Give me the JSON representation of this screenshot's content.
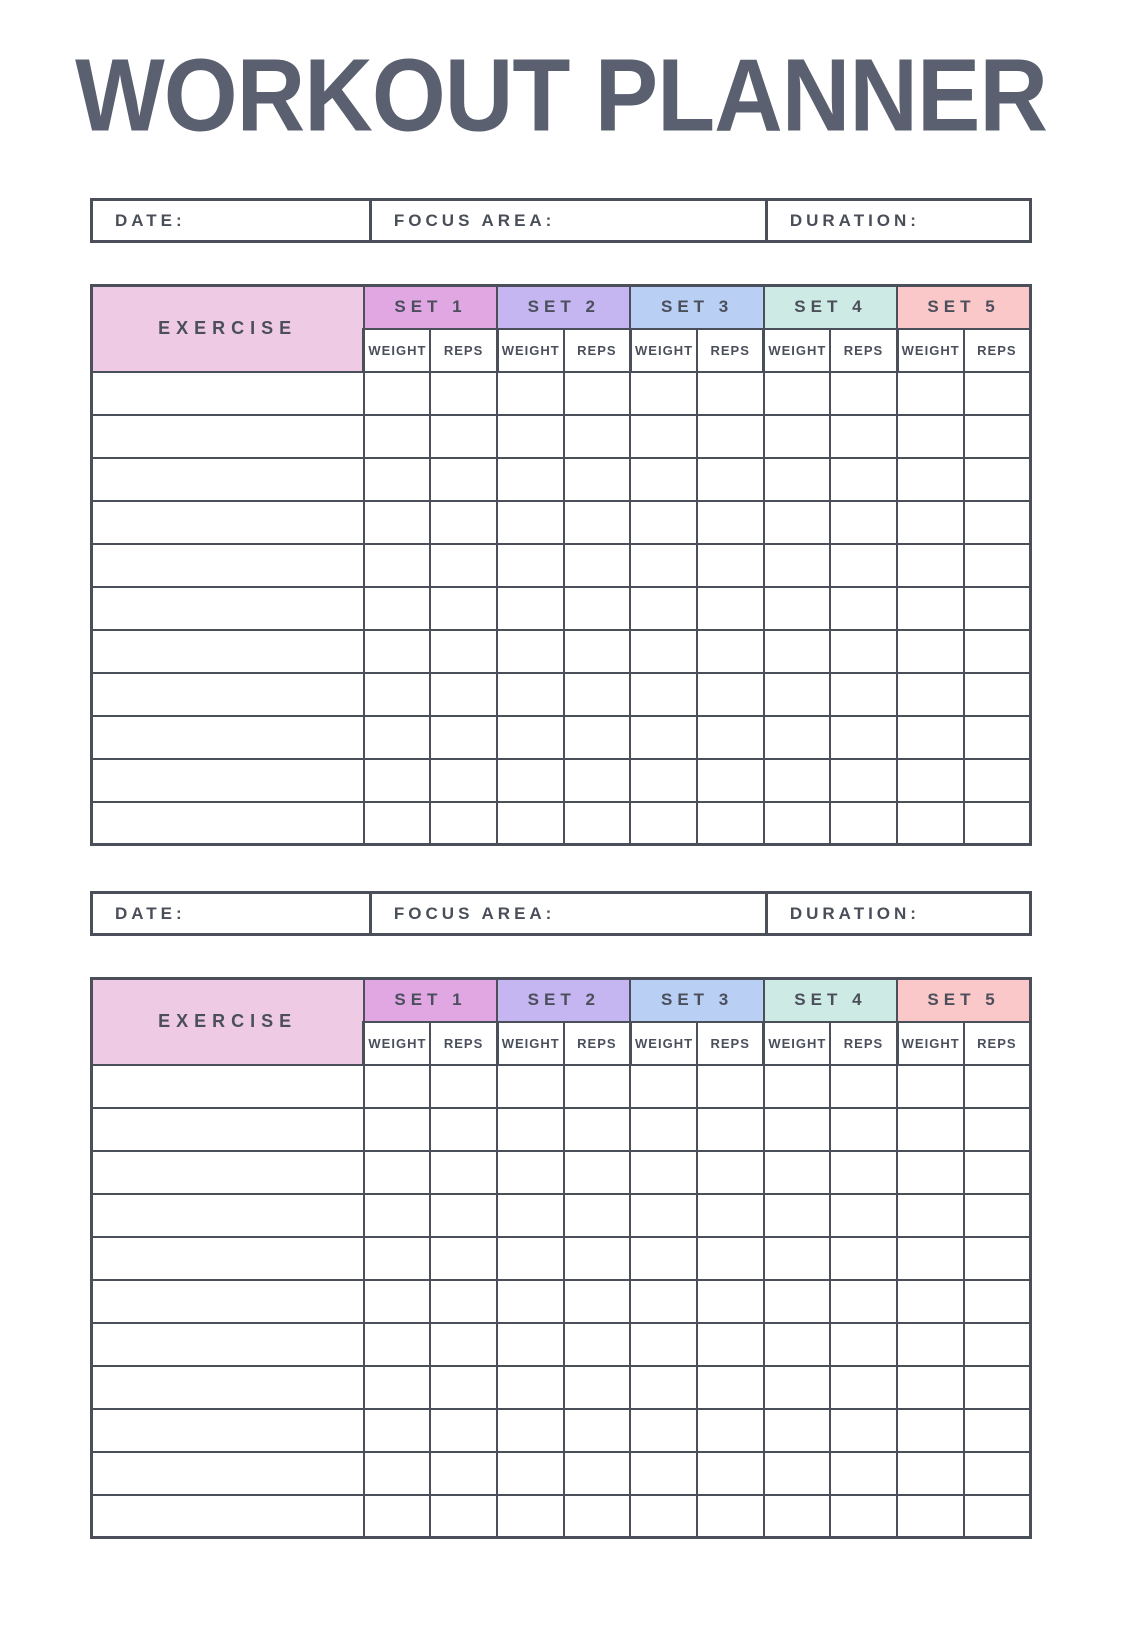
{
  "title": "WORKOUT PLANNER",
  "colors": {
    "ink": "#4a4f59",
    "title_text": "#5a6070",
    "exercise_header_bg": "#efcae5"
  },
  "meta_labels": {
    "date": "DATE:",
    "focus": "FOCUS AREA:",
    "duration": "DURATION:"
  },
  "table": {
    "exercise_header": "EXERCISE",
    "sets": [
      {
        "label": "SET 1",
        "color": "#e0a7e3"
      },
      {
        "label": "SET 2",
        "color": "#c5b5f0"
      },
      {
        "label": "SET 3",
        "color": "#b9cff3"
      },
      {
        "label": "SET 4",
        "color": "#cdeae4"
      },
      {
        "label": "SET 5",
        "color": "#fbc8c9"
      }
    ],
    "sub_headers": [
      "WEIGHT",
      "REPS"
    ],
    "row_count": 11
  },
  "sections": [
    {
      "id": "workout-block-1"
    },
    {
      "id": "workout-block-2"
    }
  ]
}
